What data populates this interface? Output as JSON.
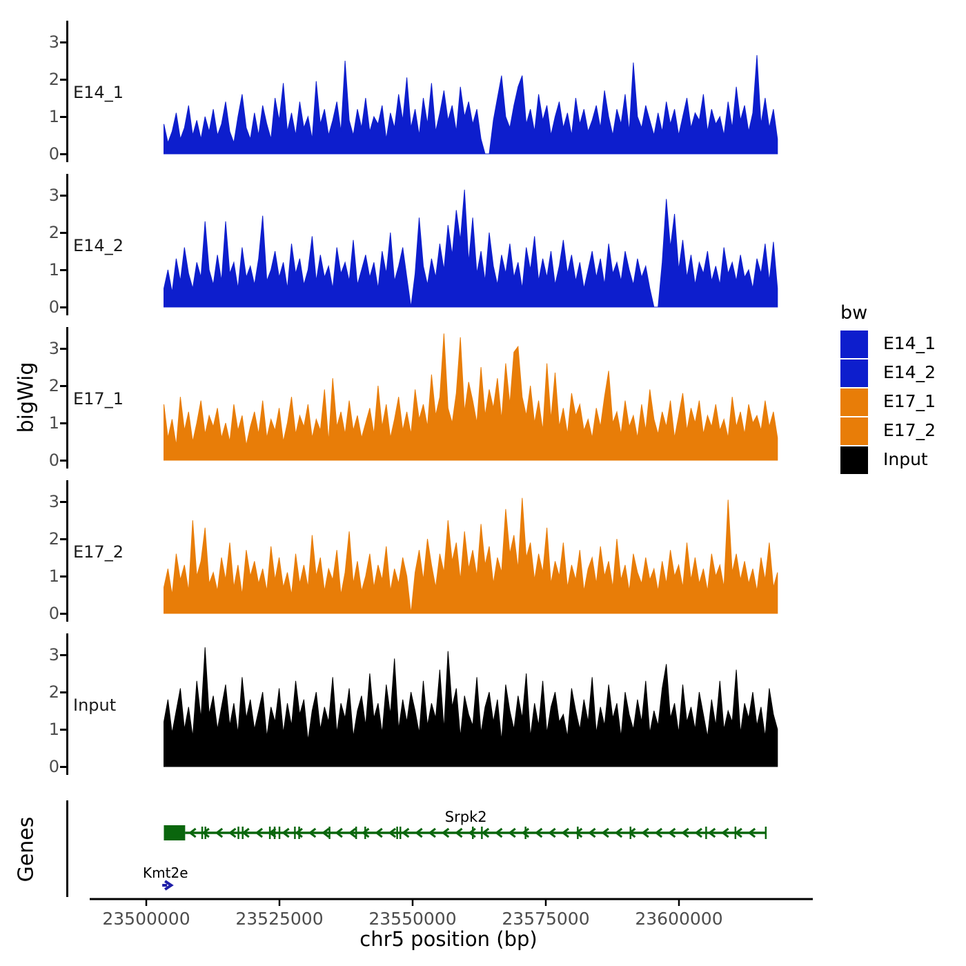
{
  "chart_data": {
    "type": "area",
    "title": "",
    "xlabel": "chr5 position (bp)",
    "ylabel": "bigWig",
    "x_domain_bp": [
      23489000,
      23625000
    ],
    "signal_range_bp": [
      23503300,
      23618500
    ],
    "x_ticks": [
      {
        "value": 23500000,
        "label": "23500000"
      },
      {
        "value": 23525000,
        "label": "23525000"
      },
      {
        "value": 23550000,
        "label": "23550000"
      },
      {
        "value": 23575000,
        "label": "23575000"
      },
      {
        "value": 23600000,
        "label": "23600000"
      }
    ],
    "y_ticks": [
      0,
      1,
      2,
      3
    ],
    "ylim": [
      0,
      3.45
    ],
    "grid": false,
    "legend_position": "right",
    "tracks": [
      {
        "label": "E14_1",
        "color": "#0d1ecd",
        "values": [
          0.8,
          0.3,
          0.6,
          1.1,
          0.4,
          0.7,
          1.3,
          0.5,
          0.9,
          0.4,
          1.0,
          0.6,
          1.2,
          0.5,
          0.8,
          1.4,
          0.6,
          0.3,
          1.0,
          1.6,
          0.7,
          0.4,
          1.1,
          0.5,
          1.3,
          0.8,
          0.4,
          1.5,
          0.9,
          1.9,
          0.6,
          1.1,
          0.5,
          1.4,
          0.7,
          1.0,
          0.4,
          1.95,
          0.8,
          1.2,
          0.5,
          0.9,
          1.4,
          0.6,
          2.5,
          0.9,
          0.5,
          1.2,
          0.7,
          1.5,
          0.6,
          1.0,
          0.8,
          1.3,
          0.4,
          1.1,
          0.7,
          1.6,
          0.9,
          2.05,
          0.7,
          1.2,
          0.5,
          1.5,
          0.8,
          1.9,
          0.6,
          1.1,
          1.7,
          0.9,
          1.3,
          0.6,
          1.8,
          1.0,
          1.4,
          0.8,
          1.2,
          0.4,
          0,
          0,
          0.9,
          1.5,
          2.1,
          1.0,
          0.7,
          1.3,
          1.8,
          2.1,
          0.8,
          1.2,
          0.6,
          1.6,
          0.9,
          1.3,
          0.5,
          1.0,
          1.4,
          0.7,
          1.1,
          0.5,
          1.5,
          0.8,
          1.2,
          0.6,
          0.9,
          1.3,
          0.7,
          1.7,
          1.0,
          0.5,
          1.2,
          0.8,
          1.6,
          0.6,
          2.45,
          1.0,
          0.7,
          1.3,
          0.9,
          0.5,
          1.1,
          0.6,
          1.4,
          0.8,
          1.2,
          0.5,
          1.0,
          1.5,
          0.7,
          1.1,
          0.9,
          1.6,
          0.6,
          1.2,
          0.8,
          1.0,
          0.5,
          1.4,
          0.7,
          1.8,
          0.9,
          1.3,
          0.6,
          1.1,
          2.65,
          0.8,
          1.5,
          0.7,
          1.2,
          0.4
        ]
      },
      {
        "label": "E14_2",
        "color": "#0d1ecd",
        "values": [
          0.5,
          1.0,
          0.4,
          1.3,
          0.7,
          1.6,
          0.9,
          0.5,
          1.2,
          0.8,
          2.3,
          1.0,
          0.6,
          1.4,
          0.7,
          2.3,
          0.9,
          1.2,
          0.5,
          1.6,
          0.8,
          1.1,
          0.6,
          1.3,
          2.45,
          0.7,
          1.0,
          1.5,
          0.8,
          1.2,
          0.5,
          1.7,
          0.9,
          1.3,
          0.6,
          1.0,
          1.9,
          0.7,
          1.4,
          0.8,
          1.1,
          0.5,
          1.6,
          0.9,
          1.2,
          0.7,
          1.8,
          0.6,
          1.0,
          1.4,
          0.8,
          1.2,
          0.5,
          1.5,
          0.9,
          2.0,
          0.7,
          1.1,
          1.6,
          0.8,
          0,
          0.9,
          2.4,
          1.1,
          0.6,
          1.3,
          0.8,
          1.7,
          1.0,
          2.2,
          1.4,
          2.6,
          1.8,
          3.15,
          1.2,
          2.4,
          0.9,
          1.5,
          0.7,
          2.0,
          1.1,
          0.6,
          1.4,
          0.9,
          1.7,
          0.8,
          1.2,
          0.5,
          1.6,
          1.0,
          1.9,
          0.7,
          1.3,
          0.8,
          1.5,
          0.6,
          1.1,
          1.8,
          0.9,
          1.4,
          0.7,
          1.2,
          0.5,
          1.0,
          1.5,
          0.8,
          1.3,
          0.6,
          1.7,
          0.9,
          1.2,
          0.7,
          1.5,
          1.0,
          0.6,
          1.3,
          0.8,
          1.1,
          0.5,
          0,
          0,
          1.2,
          2.9,
          1.6,
          2.5,
          1.0,
          1.8,
          0.8,
          1.4,
          0.6,
          1.2,
          0.9,
          1.5,
          0.7,
          1.1,
          0.6,
          1.6,
          0.9,
          1.2,
          0.7,
          1.4,
          0.8,
          1.0,
          0.5,
          1.3,
          0.9,
          1.7,
          0.7,
          1.75,
          0.5
        ]
      },
      {
        "label": "E17_1",
        "color": "#e87d08",
        "values": [
          1.5,
          0.6,
          1.1,
          0.4,
          1.7,
          0.8,
          1.3,
          0.5,
          1.0,
          1.6,
          0.7,
          1.2,
          0.9,
          1.4,
          0.6,
          1.0,
          0.5,
          1.5,
          0.8,
          1.2,
          0.4,
          0.9,
          1.3,
          0.7,
          1.6,
          0.6,
          1.1,
          0.8,
          1.4,
          0.5,
          1.0,
          1.7,
          0.7,
          1.2,
          0.9,
          1.5,
          0.6,
          1.1,
          0.8,
          1.9,
          0.5,
          2.2,
          0.9,
          1.3,
          0.7,
          1.6,
          0.8,
          1.2,
          0.6,
          1.0,
          1.4,
          0.7,
          2.0,
          0.9,
          1.5,
          0.6,
          1.1,
          1.7,
          0.8,
          1.3,
          0.7,
          1.9,
          1.1,
          1.5,
          0.9,
          2.3,
          1.2,
          1.7,
          3.4,
          1.4,
          1.0,
          1.8,
          3.3,
          1.3,
          2.1,
          1.6,
          1.0,
          2.5,
          1.2,
          1.9,
          1.4,
          2.2,
          1.1,
          2.6,
          1.5,
          2.9,
          3.05,
          1.7,
          1.2,
          2.0,
          1.0,
          1.6,
          0.8,
          2.6,
          1.1,
          2.35,
          0.9,
          1.4,
          0.7,
          1.8,
          1.2,
          1.5,
          0.8,
          1.1,
          0.6,
          1.4,
          0.9,
          1.7,
          2.4,
          1.0,
          1.3,
          0.7,
          1.6,
          0.9,
          1.2,
          0.6,
          1.5,
          0.8,
          1.9,
          1.1,
          0.7,
          1.3,
          0.9,
          1.6,
          0.6,
          1.2,
          1.8,
          0.8,
          1.4,
          1.0,
          1.6,
          0.7,
          1.2,
          0.9,
          1.5,
          0.8,
          1.1,
          0.6,
          1.7,
          0.9,
          1.3,
          0.7,
          1.5,
          1.0,
          1.2,
          0.8,
          1.6,
          0.9,
          1.3,
          0.6
        ]
      },
      {
        "label": "E17_2",
        "color": "#e87d08",
        "values": [
          0.7,
          1.2,
          0.5,
          1.6,
          0.9,
          1.3,
          0.6,
          2.5,
          1.0,
          1.4,
          2.3,
          0.8,
          1.1,
          0.6,
          1.5,
          0.9,
          1.9,
          0.7,
          1.3,
          0.5,
          1.7,
          1.0,
          1.4,
          0.8,
          1.2,
          0.6,
          1.8,
          0.9,
          1.5,
          0.7,
          1.1,
          0.5,
          1.6,
          0.8,
          1.3,
          0.7,
          2.1,
          1.0,
          1.5,
          0.6,
          1.2,
          0.9,
          1.7,
          0.5,
          1.1,
          2.2,
          0.8,
          1.4,
          0.6,
          1.0,
          1.6,
          0.7,
          1.3,
          0.9,
          1.8,
          0.6,
          1.2,
          0.8,
          1.5,
          1.0,
          0,
          1.1,
          1.7,
          0.9,
          2.0,
          1.3,
          0.7,
          1.6,
          1.1,
          2.5,
          1.4,
          1.9,
          0.9,
          2.2,
          1.2,
          1.7,
          1.0,
          2.4,
          1.3,
          1.8,
          0.8,
          1.5,
          1.1,
          2.8,
          1.6,
          2.1,
          1.2,
          3.1,
          1.5,
          1.9,
          0.9,
          1.6,
          1.1,
          2.3,
          0.8,
          1.4,
          1.0,
          1.9,
          0.7,
          1.3,
          0.9,
          1.7,
          0.6,
          1.2,
          1.5,
          0.8,
          1.8,
          1.0,
          1.4,
          0.7,
          2.0,
          0.9,
          1.3,
          0.6,
          1.6,
          1.1,
          0.8,
          1.5,
          0.9,
          1.2,
          0.6,
          1.4,
          0.8,
          1.7,
          1.0,
          1.3,
          0.7,
          1.9,
          0.9,
          1.5,
          0.8,
          1.2,
          0.6,
          1.6,
          1.0,
          1.3,
          0.7,
          3.05,
          1.1,
          1.6,
          0.9,
          1.4,
          0.8,
          1.2,
          0.6,
          1.5,
          0.9,
          1.9,
          0.7,
          1.1
        ]
      },
      {
        "label": "Input",
        "color": "#000000",
        "values": [
          1.2,
          1.8,
          0.9,
          1.5,
          2.1,
          1.0,
          1.6,
          0.8,
          2.3,
          1.3,
          3.2,
          1.4,
          1.9,
          1.0,
          1.6,
          2.2,
          1.1,
          1.7,
          0.9,
          2.4,
          1.3,
          1.8,
          1.0,
          1.5,
          2.0,
          0.8,
          1.6,
          1.2,
          2.1,
          0.9,
          1.7,
          1.1,
          2.3,
          1.4,
          1.8,
          0.7,
          1.5,
          2.0,
          1.0,
          1.6,
          1.2,
          2.4,
          0.9,
          1.7,
          1.3,
          2.1,
          0.8,
          1.5,
          1.9,
          1.1,
          2.5,
          1.3,
          1.7,
          0.9,
          2.2,
          1.4,
          2.9,
          1.0,
          1.8,
          1.2,
          2.0,
          1.5,
          0.9,
          2.3,
          1.1,
          1.7,
          1.3,
          2.6,
          1.0,
          3.1,
          1.6,
          2.1,
          0.8,
          1.9,
          1.4,
          1.1,
          2.4,
          0.9,
          1.6,
          2.0,
          1.2,
          1.8,
          0.7,
          2.2,
          1.5,
          1.0,
          1.9,
          1.3,
          2.5,
          0.8,
          1.7,
          1.1,
          2.3,
          0.9,
          1.6,
          2.0,
          1.2,
          1.4,
          0.8,
          2.1,
          1.5,
          1.0,
          1.8,
          1.2,
          2.4,
          0.9,
          1.6,
          1.1,
          2.2,
          1.3,
          1.7,
          0.8,
          2.0,
          1.4,
          1.0,
          1.8,
          1.2,
          2.3,
          0.9,
          1.5,
          1.1,
          2.1,
          2.75,
          1.3,
          1.7,
          0.9,
          2.2,
          1.2,
          1.6,
          1.0,
          2.0,
          1.4,
          0.8,
          1.8,
          1.1,
          2.3,
          1.0,
          1.5,
          1.2,
          2.6,
          0.9,
          1.7,
          1.3,
          2.0,
          1.1,
          1.6,
          0.8,
          2.1,
          1.4,
          1.0
        ]
      }
    ],
    "genes_panel": {
      "title": "Genes",
      "genes": [
        {
          "name": "Srpk2",
          "color": "#0a660d",
          "strand": "-",
          "start_bp": 23503300,
          "end_bp": 23616300,
          "exon_box_end_bp": 23507300,
          "label_center_bp": 23560000,
          "exon_ticks_bp": [
            23510500,
            23511100,
            23517300,
            23518100,
            23523200,
            23524100,
            23525000,
            23527900,
            23528700,
            23534400,
            23539400,
            23541100,
            23547100,
            23547700,
            23561300,
            23563000,
            23571200,
            23581000,
            23590900,
            23605100,
            23610600,
            23616300
          ]
        },
        {
          "name": "Kmt2e",
          "color": "#1f1fa8",
          "strand": "+",
          "start_bp": 23503000,
          "end_bp": 23504800,
          "label_center_bp": 23503600
        }
      ]
    }
  },
  "legend": {
    "title": "bw",
    "items": [
      {
        "label": "E14_1",
        "color": "#0d1ecd"
      },
      {
        "label": "E14_2",
        "color": "#0d1ecd"
      },
      {
        "label": "E17_1",
        "color": "#e87d08"
      },
      {
        "label": "E17_2",
        "color": "#e87d08"
      },
      {
        "label": "Input",
        "color": "#000000"
      }
    ]
  }
}
